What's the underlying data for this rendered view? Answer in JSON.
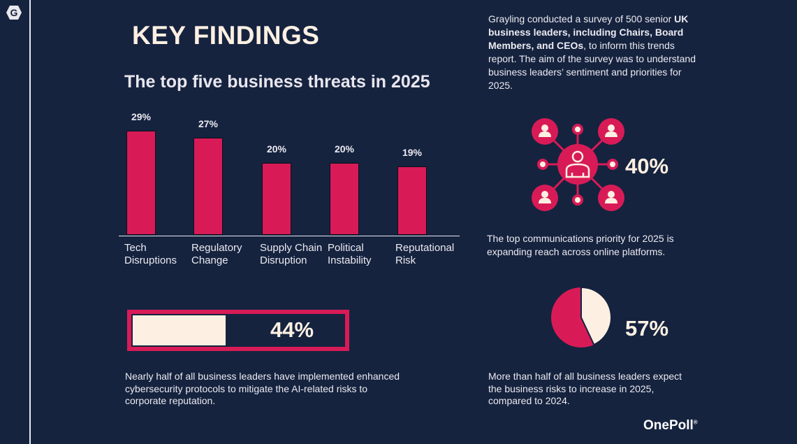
{
  "header": {
    "title": "KEY FINDINGS",
    "logo_letter": "G"
  },
  "chart_data": {
    "type": "bar",
    "title": "The top five business threats in 2025",
    "categories": [
      [
        "Tech",
        "Disruptions"
      ],
      [
        "Regulatory",
        "Change"
      ],
      [
        "Supply Chain",
        "Disruption"
      ],
      [
        "Political",
        "Instability"
      ],
      [
        "Reputational",
        "Risk"
      ]
    ],
    "values": [
      29,
      27,
      20,
      20,
      19
    ],
    "value_labels": [
      "29%",
      "27%",
      "20%",
      "20%",
      "19%"
    ],
    "bar_color": "#d81b57"
  },
  "intro": {
    "pre": "Grayling conducted a survey of 500 senior ",
    "bold": "UK business leaders, including Chairs, Board Members, and CEOs",
    "post": ", to inform this trends report. The aim of the survey was to understand business leaders’ sentiment and priorities for 2025."
  },
  "stat_network": {
    "value": "40%",
    "icon": "network-people-icon",
    "text": "The top communications priority for 2025 is expanding reach across online platforms."
  },
  "stat_progress": {
    "value": "44%",
    "fraction": 0.44,
    "text": "Nearly half of all business leaders have implemented enhanced cybersecurity protocols to mitigate the AI-related risks to corporate reputation."
  },
  "stat_pie": {
    "value": "57%",
    "fraction": 0.57,
    "text": "More than half of all business leaders expect the business risks to increase in 2025, compared to 2024."
  },
  "footer": {
    "brand": "OnePoll",
    "mark": "®"
  },
  "colors": {
    "background": "#15233f",
    "accent": "#d81b57",
    "cream": "#fdf0e2"
  }
}
